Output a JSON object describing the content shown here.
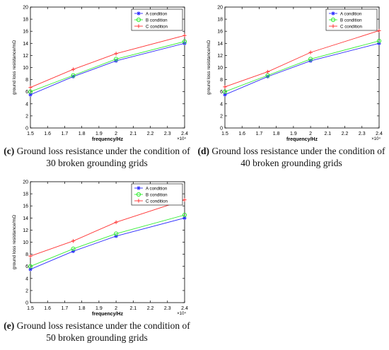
{
  "colors": {
    "A": "#2b2bff",
    "B": "#33ee33",
    "C": "#ff3333",
    "axis": "#000000",
    "legend_border": "#000000"
  },
  "panels": [
    {
      "tag": "(c)",
      "caption": "Ground loss resistance under the condition of 30 broken grounding grids",
      "chart_data": {
        "type": "line",
        "xlabel": "frequency/Hz",
        "ylabel": "ground loss resistance/mΩ",
        "x_exponent": "×10⁴",
        "xlim": [
          1.5,
          2.4
        ],
        "ylim": [
          0,
          20
        ],
        "xticks": [
          "1.5",
          "1.6",
          "1.7",
          "1.8",
          "1.9",
          "2",
          "2.1",
          "2.2",
          "2.3",
          "2.4"
        ],
        "yticks": [
          "0",
          "2",
          "4",
          "6",
          "8",
          "10",
          "12",
          "14",
          "16",
          "18",
          "20"
        ],
        "x": [
          1.5,
          1.75,
          2.0,
          2.4
        ],
        "legend": "top-right",
        "grid": false,
        "series": [
          {
            "name": "A condition",
            "key": "A",
            "marker": "star",
            "values": [
              5.5,
              8.5,
              11.1,
              14.0
            ]
          },
          {
            "name": "B condition",
            "key": "B",
            "marker": "circle",
            "values": [
              6.0,
              8.7,
              11.4,
              14.3
            ]
          },
          {
            "name": "C condition",
            "key": "C",
            "marker": "plus",
            "values": [
              6.7,
              9.7,
              12.3,
              15.3
            ]
          }
        ]
      }
    },
    {
      "tag": "(d)",
      "caption": "Ground loss resistance under the condition of 40 broken grounding grids",
      "chart_data": {
        "type": "line",
        "xlabel": "frequency/Hz",
        "ylabel": "ground loss resistance/mΩ",
        "x_exponent": "×10⁴",
        "xlim": [
          1.5,
          2.4
        ],
        "ylim": [
          0,
          20
        ],
        "xticks": [
          "1.5",
          "1.6",
          "1.7",
          "1.8",
          "1.9",
          "2",
          "2.1",
          "2.2",
          "2.3",
          "2.4"
        ],
        "yticks": [
          "0",
          "2",
          "4",
          "6",
          "8",
          "10",
          "12",
          "14",
          "16",
          "18",
          "20"
        ],
        "x": [
          1.5,
          1.75,
          2.0,
          2.4
        ],
        "legend": "top-right",
        "grid": false,
        "series": [
          {
            "name": "A condition",
            "key": "A",
            "marker": "star",
            "values": [
              5.5,
              8.5,
              11.1,
              14.0
            ]
          },
          {
            "name": "B condition",
            "key": "B",
            "marker": "circle",
            "values": [
              6.0,
              8.7,
              11.4,
              14.4
            ]
          },
          {
            "name": "C condition",
            "key": "C",
            "marker": "plus",
            "values": [
              6.8,
              9.3,
              12.5,
              16.1
            ]
          }
        ]
      }
    },
    {
      "tag": "(e)",
      "caption": "Ground loss resistance under the condition of 50 broken grounding grids",
      "chart_data": {
        "type": "line",
        "xlabel": "frequency/Hz",
        "ylabel": "ground loss resistance/mΩ",
        "x_exponent": "×10⁴",
        "xlim": [
          1.5,
          2.4
        ],
        "ylim": [
          0,
          20
        ],
        "xticks": [
          "1.5",
          "1.6",
          "1.7",
          "1.8",
          "1.9",
          "2",
          "2.1",
          "2.2",
          "2.3",
          "2.4"
        ],
        "yticks": [
          "0",
          "2",
          "4",
          "6",
          "8",
          "10",
          "12",
          "14",
          "16",
          "18",
          "20"
        ],
        "x": [
          1.5,
          1.75,
          2.0,
          2.4
        ],
        "legend": "top-right",
        "grid": false,
        "series": [
          {
            "name": "A condition",
            "key": "A",
            "marker": "star",
            "values": [
              5.5,
              8.5,
              11.0,
              14.0
            ]
          },
          {
            "name": "B condition",
            "key": "B",
            "marker": "circle",
            "values": [
              6.0,
              8.9,
              11.4,
              14.5
            ]
          },
          {
            "name": "C condition",
            "key": "C",
            "marker": "plus",
            "values": [
              7.7,
              10.2,
              13.3,
              17.0
            ]
          }
        ]
      }
    }
  ]
}
